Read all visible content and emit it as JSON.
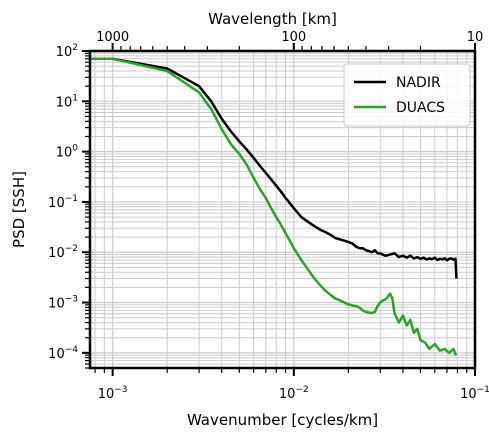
{
  "chart_data": {
    "type": "line",
    "xlabel": "Wavenumber [cycles/km]",
    "ylabel": "PSD [SSH]",
    "top_xlabel": "Wavelength [km]",
    "xscale": "log",
    "yscale": "log",
    "xlim": [
      0.00075,
      0.1
    ],
    "ylim": [
      5e-05,
      100
    ],
    "x_ticks": [
      {
        "value": 0.001,
        "base": "10",
        "exp": "−3"
      },
      {
        "value": 0.01,
        "base": "10",
        "exp": "−2"
      },
      {
        "value": 0.1,
        "base": "10",
        "exp": "−1"
      }
    ],
    "y_ticks": [
      {
        "value": 100,
        "base": "10",
        "exp": "2"
      },
      {
        "value": 10,
        "base": "10",
        "exp": "1"
      },
      {
        "value": 1,
        "base": "10",
        "exp": "0"
      },
      {
        "value": 0.1,
        "base": "10",
        "exp": "−1"
      },
      {
        "value": 0.01,
        "base": "10",
        "exp": "−2"
      },
      {
        "value": 0.001,
        "base": "10",
        "exp": "−3"
      },
      {
        "value": 0.0001,
        "base": "10",
        "exp": "−4"
      }
    ],
    "top_ticks": [
      {
        "wavelength": 1000,
        "label": "1000"
      },
      {
        "wavelength": 100,
        "label": "100"
      },
      {
        "wavelength": 10,
        "label": "10"
      }
    ],
    "grid": true,
    "legend_position": "top-right",
    "series": [
      {
        "name": "NADIR",
        "color": "#000000",
        "x": [
          0.00075,
          0.001,
          0.002,
          0.003,
          0.0035,
          0.004,
          0.0045,
          0.005,
          0.0055,
          0.006,
          0.0065,
          0.007,
          0.0075,
          0.008,
          0.0085,
          0.009,
          0.0095,
          0.01,
          0.011,
          0.012,
          0.013,
          0.014,
          0.015,
          0.016,
          0.017,
          0.018,
          0.019,
          0.02,
          0.021,
          0.022,
          0.023,
          0.024,
          0.025,
          0.026,
          0.027,
          0.028,
          0.029,
          0.03,
          0.032,
          0.034,
          0.036,
          0.038,
          0.04,
          0.042,
          0.044,
          0.046,
          0.048,
          0.05,
          0.052,
          0.054,
          0.056,
          0.058,
          0.06,
          0.062,
          0.064,
          0.066,
          0.068,
          0.07,
          0.072,
          0.074,
          0.076,
          0.078,
          0.079
        ],
        "y": [
          70,
          70,
          45,
          20,
          10,
          4.5,
          2.5,
          1.6,
          1.1,
          0.75,
          0.52,
          0.38,
          0.28,
          0.21,
          0.16,
          0.12,
          0.095,
          0.075,
          0.05,
          0.04,
          0.033,
          0.028,
          0.025,
          0.022,
          0.019,
          0.018,
          0.017,
          0.016,
          0.015,
          0.013,
          0.012,
          0.012,
          0.011,
          0.0105,
          0.01,
          0.011,
          0.0095,
          0.0095,
          0.0085,
          0.009,
          0.0095,
          0.008,
          0.0085,
          0.0078,
          0.0085,
          0.0075,
          0.008,
          0.0074,
          0.0078,
          0.0072,
          0.0075,
          0.0073,
          0.0078,
          0.007,
          0.0074,
          0.0072,
          0.0076,
          0.0069,
          0.0074,
          0.0075,
          0.0071,
          0.0074,
          0.003
        ]
      },
      {
        "name": "DUACS",
        "color": "#2ca02c",
        "x": [
          0.00075,
          0.001,
          0.002,
          0.003,
          0.0035,
          0.004,
          0.0045,
          0.005,
          0.0055,
          0.006,
          0.0065,
          0.007,
          0.0075,
          0.008,
          0.0085,
          0.009,
          0.0095,
          0.01,
          0.011,
          0.012,
          0.013,
          0.014,
          0.015,
          0.016,
          0.017,
          0.018,
          0.019,
          0.02,
          0.021,
          0.022,
          0.023,
          0.024,
          0.025,
          0.026,
          0.027,
          0.028,
          0.029,
          0.03,
          0.031,
          0.032,
          0.033,
          0.034,
          0.035,
          0.036,
          0.037,
          0.038,
          0.04,
          0.042,
          0.044,
          0.046,
          0.048,
          0.05,
          0.053,
          0.056,
          0.06,
          0.064,
          0.068,
          0.072,
          0.076,
          0.078,
          0.079
        ],
        "y": [
          70,
          70,
          40,
          15,
          7,
          2.8,
          1.4,
          0.9,
          0.55,
          0.3,
          0.18,
          0.12,
          0.075,
          0.05,
          0.035,
          0.024,
          0.017,
          0.012,
          0.007,
          0.0045,
          0.003,
          0.0022,
          0.0017,
          0.0014,
          0.0012,
          0.0011,
          0.001,
          0.00092,
          0.00088,
          0.00085,
          0.0008,
          0.0007,
          0.00065,
          0.00063,
          0.00062,
          0.00065,
          0.00085,
          0.001,
          0.0011,
          0.00115,
          0.0013,
          0.0015,
          0.0012,
          0.0006,
          0.0005,
          0.0004,
          0.00055,
          0.00035,
          0.00045,
          0.00025,
          0.0003,
          0.00018,
          0.00016,
          0.00012,
          0.00015,
          0.00011,
          0.00012,
          0.0001,
          0.00012,
          9.5e-05,
          9e-05
        ]
      }
    ]
  }
}
